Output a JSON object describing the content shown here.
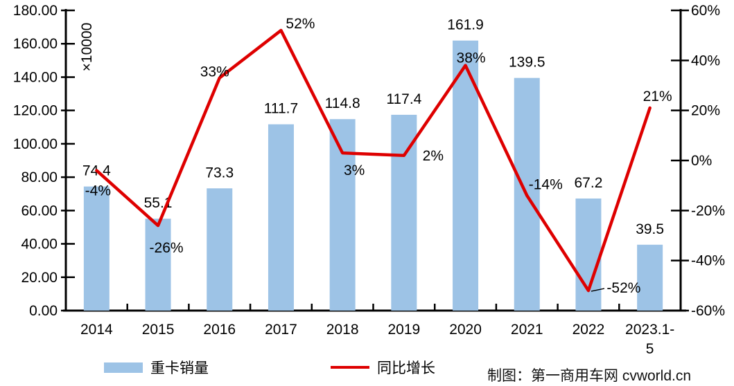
{
  "chart_data": {
    "type": "bar+line",
    "title": "",
    "categories": [
      "2014",
      "2015",
      "2016",
      "2017",
      "2018",
      "2019",
      "2020",
      "2021",
      "2022",
      "2023.1-5"
    ],
    "series": [
      {
        "name": "重卡销量",
        "type": "bar",
        "axis": "left",
        "color": "#9DC3E6",
        "values": [
          74.4,
          55.1,
          73.3,
          111.7,
          114.8,
          117.4,
          161.9,
          139.5,
          67.2,
          39.5
        ],
        "labels": [
          "74.4",
          "55.1",
          "73.3",
          "111.7",
          "114.8",
          "117.4",
          "161.9",
          "139.5",
          "67.2",
          "39.5"
        ]
      },
      {
        "name": "同比增长",
        "type": "line",
        "axis": "right",
        "color": "#DE0000",
        "values": [
          -4,
          -26,
          33,
          52,
          3,
          2,
          38,
          -14,
          -52,
          21
        ],
        "labels": [
          "-4%",
          "-26%",
          "33%",
          "52%",
          "3%",
          "2%",
          "38%",
          "-14%",
          "-52%",
          "21%"
        ]
      }
    ],
    "left_axis": {
      "min": 0,
      "max": 180,
      "tick_step": 20,
      "tick_labels": [
        "0.00",
        "20.00",
        "40.00",
        "60.00",
        "80.00",
        "100.00",
        "120.00",
        "140.00",
        "160.00",
        "180.00"
      ],
      "unit_label": "×10000"
    },
    "right_axis": {
      "min": -60,
      "max": 60,
      "tick_step": 20,
      "tick_labels": [
        "-60%",
        "-40%",
        "-20%",
        "0%",
        "20%",
        "40%",
        "60%"
      ]
    },
    "legend_position": "bottom",
    "grid": "off",
    "credit": "制图：第一商用车网 cvworld.cn"
  }
}
